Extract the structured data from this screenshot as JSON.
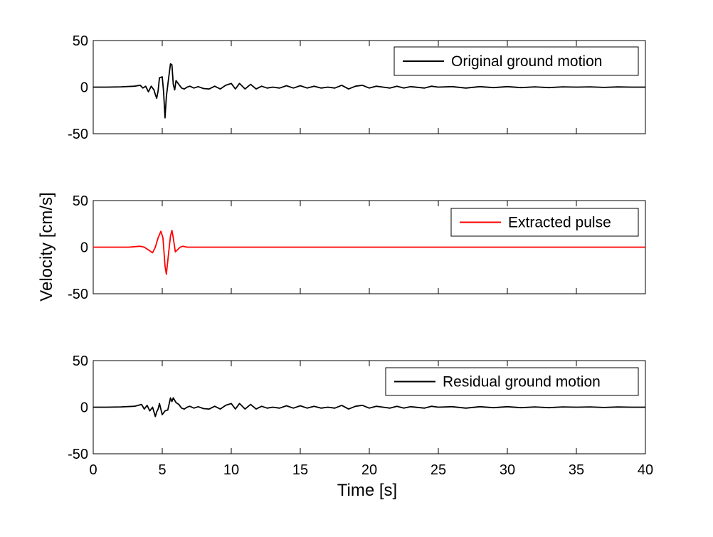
{
  "chart_data": {
    "type": "line",
    "xlabel": "Time [s]",
    "ylabel": "Velocity [cm/s]",
    "xlim": [
      0,
      40
    ],
    "xticks": [
      "0",
      "5",
      "10",
      "15",
      "20",
      "25",
      "30",
      "35",
      "40"
    ],
    "grid": false,
    "panels": [
      {
        "ylim": [
          -50,
          50
        ],
        "yticks": [
          "50",
          "0",
          "-50"
        ],
        "legend_position": "top-right",
        "series": [
          {
            "name": "Original ground motion",
            "color": "#000000",
            "points": [
              [
                0,
                0
              ],
              [
                1,
                0
              ],
              [
                2,
                0.3
              ],
              [
                3,
                1
              ],
              [
                3.4,
                2
              ],
              [
                3.6,
                -1
              ],
              [
                3.8,
                1
              ],
              [
                4,
                -5
              ],
              [
                4.2,
                1
              ],
              [
                4.4,
                -3
              ],
              [
                4.5,
                -8
              ],
              [
                4.6,
                -12
              ],
              [
                4.7,
                -4
              ],
              [
                4.8,
                10
              ],
              [
                5.0,
                11
              ],
              [
                5.1,
                -5
              ],
              [
                5.2,
                -33
              ],
              [
                5.3,
                -10
              ],
              [
                5.5,
                14
              ],
              [
                5.6,
                25
              ],
              [
                5.7,
                24
              ],
              [
                5.8,
                3
              ],
              [
                5.9,
                -3
              ],
              [
                6.0,
                7
              ],
              [
                6.2,
                3
              ],
              [
                6.4,
                -1
              ],
              [
                6.6,
                -2
              ],
              [
                6.8,
                0
              ],
              [
                7,
                1
              ],
              [
                7.3,
                -1
              ],
              [
                7.6,
                0.5
              ],
              [
                8,
                -1.5
              ],
              [
                8.4,
                -2
              ],
              [
                8.8,
                1
              ],
              [
                9.2,
                -2
              ],
              [
                9.6,
                2
              ],
              [
                10,
                4
              ],
              [
                10.3,
                -2
              ],
              [
                10.6,
                4
              ],
              [
                11,
                -2
              ],
              [
                11.4,
                3
              ],
              [
                11.8,
                -2
              ],
              [
                12.2,
                1
              ],
              [
                12.6,
                -1
              ],
              [
                13,
                0
              ],
              [
                13.5,
                -1
              ],
              [
                14,
                1.5
              ],
              [
                14.5,
                -1
              ],
              [
                15,
                1.5
              ],
              [
                15.5,
                -1
              ],
              [
                16,
                1
              ],
              [
                16.5,
                -1
              ],
              [
                17,
                0
              ],
              [
                17.5,
                -1
              ],
              [
                18,
                2
              ],
              [
                18.5,
                -2
              ],
              [
                19,
                1
              ],
              [
                19.5,
                2
              ],
              [
                20,
                -1
              ],
              [
                20.5,
                1
              ],
              [
                21,
                0
              ],
              [
                21.5,
                -1
              ],
              [
                22,
                1
              ],
              [
                22.5,
                -1
              ],
              [
                23,
                0.5
              ],
              [
                24,
                -1
              ],
              [
                24.5,
                1
              ],
              [
                25,
                0
              ],
              [
                26,
                0.5
              ],
              [
                27,
                -1
              ],
              [
                28,
                0.5
              ],
              [
                29,
                -0.5
              ],
              [
                30,
                0.5
              ],
              [
                31,
                -0.5
              ],
              [
                32,
                0.3
              ],
              [
                33,
                -0.5
              ],
              [
                34,
                0.3
              ],
              [
                35,
                0
              ],
              [
                36,
                0.3
              ],
              [
                37,
                -0.3
              ],
              [
                38,
                0.2
              ],
              [
                39,
                0
              ],
              [
                40,
                0
              ]
            ]
          }
        ]
      },
      {
        "ylim": [
          -50,
          50
        ],
        "yticks": [
          "50",
          "0",
          "-50"
        ],
        "legend_position": "top-right",
        "series": [
          {
            "name": "Extracted pulse",
            "color": "#ff0000",
            "points": [
              [
                0,
                0
              ],
              [
                2.6,
                0
              ],
              [
                3.0,
                0.5
              ],
              [
                3.4,
                1
              ],
              [
                3.7,
                0
              ],
              [
                4.0,
                -3
              ],
              [
                4.3,
                -6
              ],
              [
                4.5,
                0
              ],
              [
                4.7,
                10
              ],
              [
                4.9,
                17
              ],
              [
                5.05,
                10
              ],
              [
                5.2,
                -20
              ],
              [
                5.3,
                -29
              ],
              [
                5.45,
                -8
              ],
              [
                5.6,
                12
              ],
              [
                5.7,
                18
              ],
              [
                5.8,
                10
              ],
              [
                5.95,
                -5
              ],
              [
                6.1,
                -3
              ],
              [
                6.3,
                0
              ],
              [
                6.5,
                1
              ],
              [
                6.8,
                0
              ],
              [
                7.2,
                0
              ],
              [
                8,
                0
              ],
              [
                40,
                0
              ]
            ]
          }
        ]
      },
      {
        "ylim": [
          -50,
          50
        ],
        "yticks": [
          "50",
          "0",
          "-50"
        ],
        "legend_position": "top-right",
        "series": [
          {
            "name": "Residual ground motion",
            "color": "#000000",
            "points": [
              [
                0,
                0
              ],
              [
                1,
                0
              ],
              [
                2,
                0.3
              ],
              [
                3,
                1
              ],
              [
                3.5,
                3
              ],
              [
                3.7,
                -2
              ],
              [
                3.9,
                2
              ],
              [
                4.1,
                -4
              ],
              [
                4.3,
                0
              ],
              [
                4.5,
                -10
              ],
              [
                4.6,
                -5
              ],
              [
                4.7,
                -2
              ],
              [
                4.8,
                4
              ],
              [
                5.0,
                -8
              ],
              [
                5.2,
                -4
              ],
              [
                5.4,
                -3
              ],
              [
                5.6,
                10
              ],
              [
                5.7,
                6
              ],
              [
                5.8,
                10
              ],
              [
                6.0,
                5
              ],
              [
                6.2,
                3
              ],
              [
                6.4,
                -1
              ],
              [
                6.6,
                -2
              ],
              [
                6.8,
                0
              ],
              [
                7,
                1
              ],
              [
                7.3,
                -1
              ],
              [
                7.6,
                0.5
              ],
              [
                8,
                -1.5
              ],
              [
                8.4,
                -2
              ],
              [
                8.8,
                1
              ],
              [
                9.2,
                -2
              ],
              [
                9.6,
                2
              ],
              [
                10,
                4
              ],
              [
                10.3,
                -2
              ],
              [
                10.6,
                4
              ],
              [
                11,
                -2
              ],
              [
                11.4,
                3
              ],
              [
                11.8,
                -2
              ],
              [
                12.2,
                1
              ],
              [
                12.6,
                -1
              ],
              [
                13,
                0
              ],
              [
                13.5,
                -1
              ],
              [
                14,
                1.5
              ],
              [
                14.5,
                -1
              ],
              [
                15,
                1.5
              ],
              [
                15.5,
                -1
              ],
              [
                16,
                1
              ],
              [
                16.5,
                -1
              ],
              [
                17,
                0
              ],
              [
                17.5,
                -1
              ],
              [
                18,
                2
              ],
              [
                18.5,
                -2
              ],
              [
                19,
                1
              ],
              [
                19.5,
                2
              ],
              [
                20,
                -1
              ],
              [
                20.5,
                1
              ],
              [
                21,
                0
              ],
              [
                21.5,
                -1
              ],
              [
                22,
                1
              ],
              [
                22.5,
                -1
              ],
              [
                23,
                0.5
              ],
              [
                24,
                -1
              ],
              [
                24.5,
                1
              ],
              [
                25,
                0
              ],
              [
                26,
                0.5
              ],
              [
                27,
                -1
              ],
              [
                28,
                0.5
              ],
              [
                29,
                -0.5
              ],
              [
                30,
                0.5
              ],
              [
                31,
                -0.5
              ],
              [
                32,
                0.3
              ],
              [
                33,
                -0.5
              ],
              [
                34,
                0.3
              ],
              [
                35,
                0
              ],
              [
                36,
                0.3
              ],
              [
                37,
                -0.3
              ],
              [
                38,
                0.2
              ],
              [
                39,
                0
              ],
              [
                40,
                0
              ]
            ]
          }
        ]
      }
    ]
  }
}
